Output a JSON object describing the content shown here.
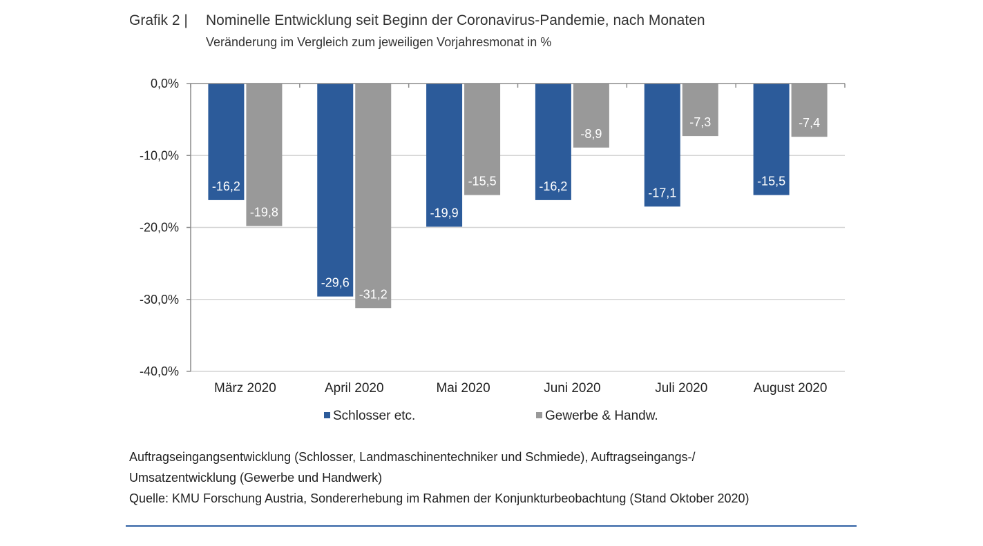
{
  "header": {
    "grafik_label": "Grafik 2 |",
    "title": "Nominelle Entwicklung seit Beginn der Coronavirus-Pandemie, nach Monaten",
    "subtitle": "Veränderung im Vergleich zum jeweiligen Vorjahresmonat in %"
  },
  "chart_data": {
    "type": "bar",
    "categories": [
      "März 2020",
      "April 2020",
      "Mai 2020",
      "Juni 2020",
      "Juli 2020",
      "August 2020"
    ],
    "series": [
      {
        "name": "Schlosser etc.",
        "values": [
          -16.2,
          -29.6,
          -19.9,
          -16.2,
          -17.1,
          -15.5
        ],
        "labels": [
          "-16,2",
          "-29,6",
          "-19,9",
          "-16,2",
          "-17,1",
          "-15,5"
        ],
        "color": "#2c5b9a"
      },
      {
        "name": "Gewerbe & Handw.",
        "values": [
          -19.8,
          -31.2,
          -15.5,
          -8.9,
          -7.3,
          -7.4
        ],
        "labels": [
          "-19,8",
          "-31,2",
          "-15,5",
          "-8,9",
          "-7,3",
          "-7,4"
        ],
        "color": "#999999"
      }
    ],
    "ylim": [
      -40,
      0
    ],
    "yticks": [
      "0,0%",
      "-10,0%",
      "-20,0%",
      "-30,0%",
      "-40,0%"
    ],
    "grid": true,
    "legend_position": "bottom"
  },
  "footer": {
    "line1": "Auftragseingangsentwicklung (Schlosser, Landmaschinentechniker und Schmiede), Auftragseingangs-/",
    "line2": "Umsatzentwicklung (Gewerbe und Handwerk)",
    "line3": "Quelle: KMU Forschung Austria, Sondererhebung im Rahmen der Konjunkturbeobachtung (Stand Oktober 2020)"
  }
}
